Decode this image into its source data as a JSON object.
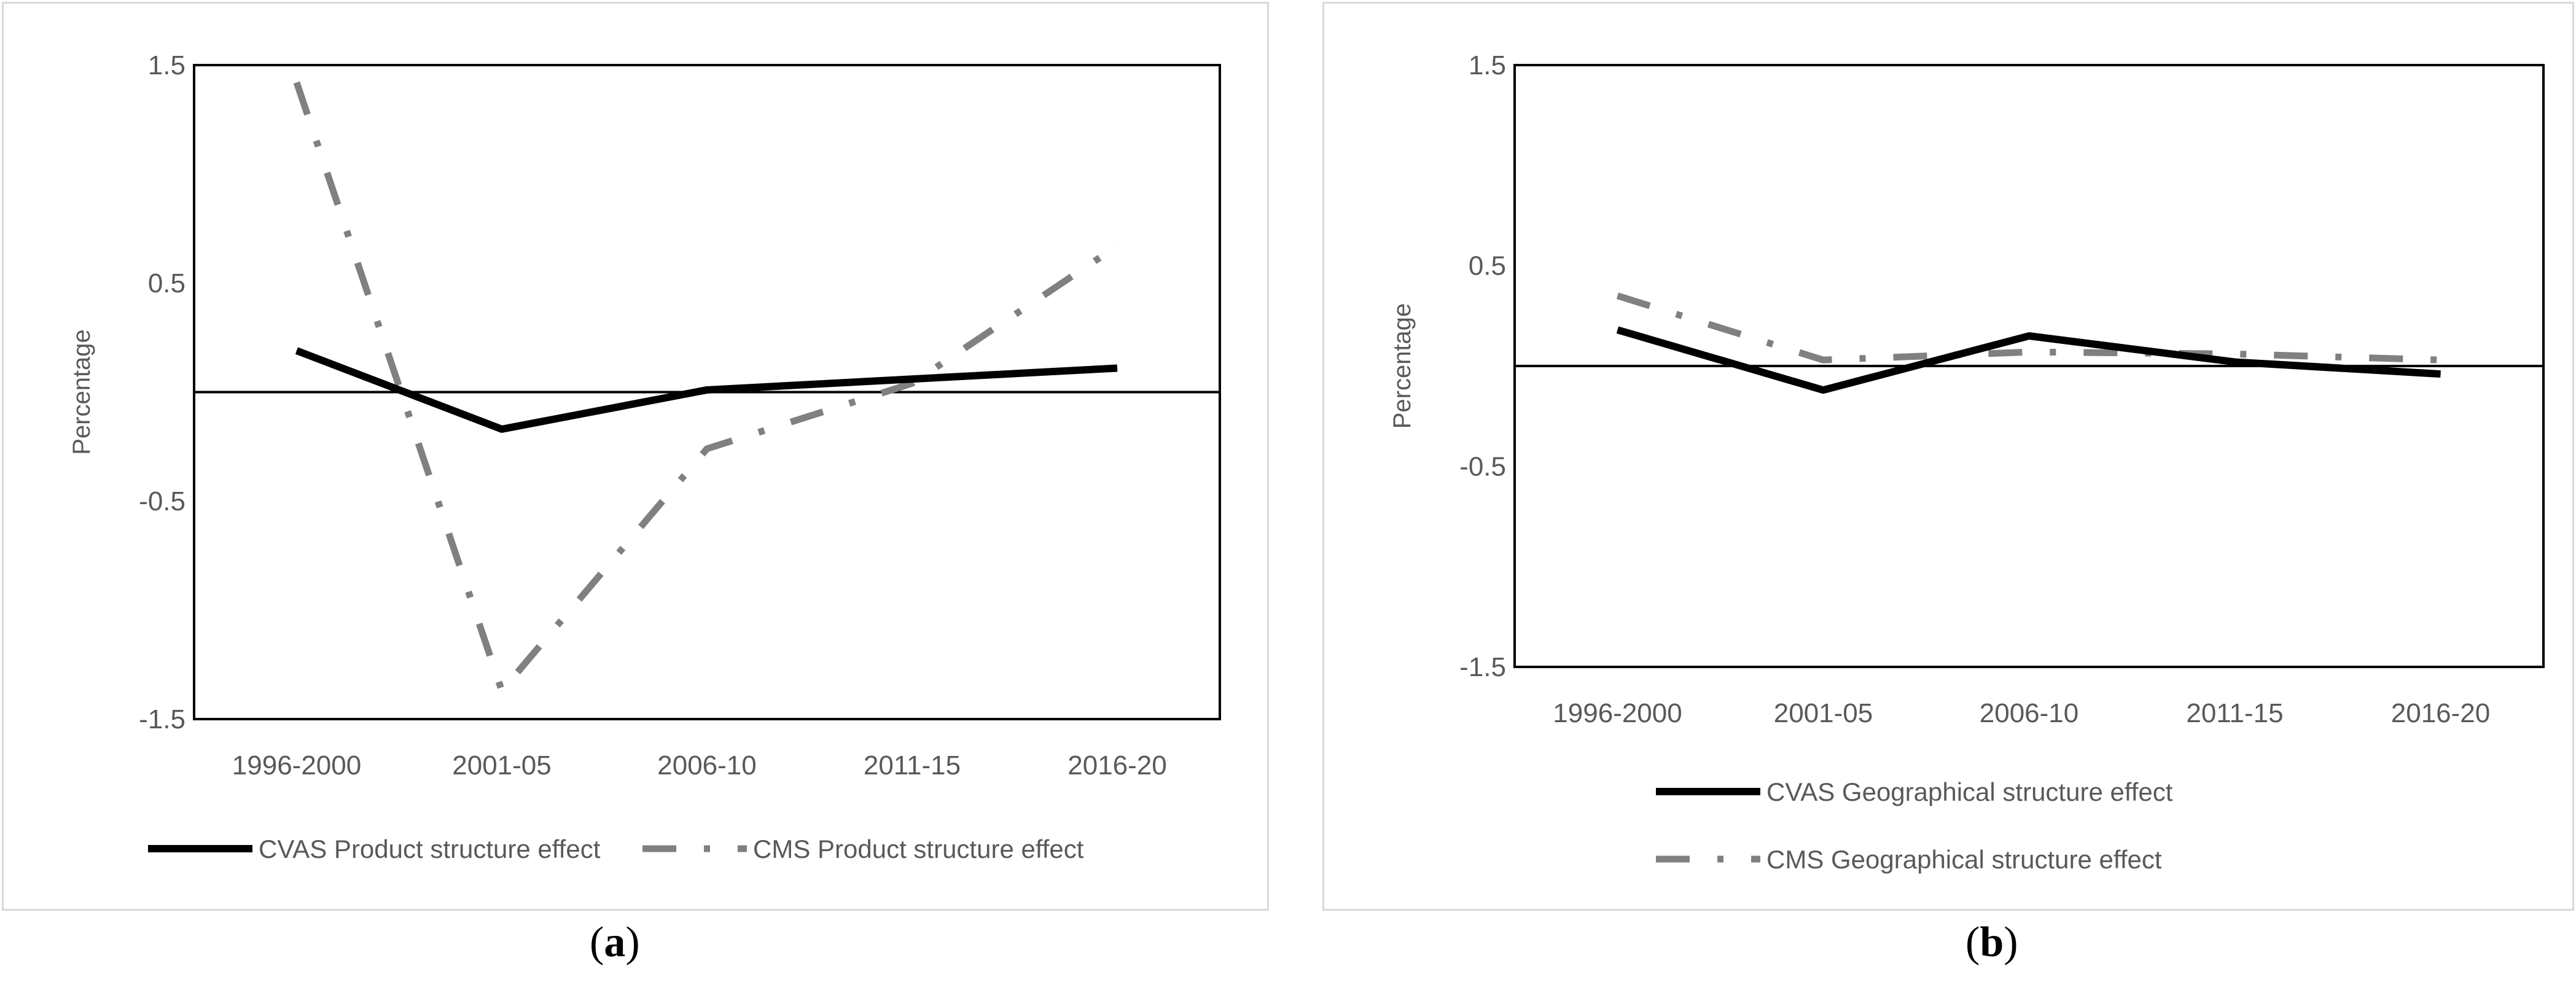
{
  "captions": {
    "a_open": "(",
    "a_letter": "a",
    "a_close": ")",
    "b_open": "(",
    "b_letter": "b",
    "b_close": ")"
  },
  "chart_data": [
    {
      "type": "line",
      "panel": "a",
      "categories": [
        "1996-2000",
        "2001-05",
        "2006-10",
        "2011-15",
        "2016-20"
      ],
      "ylabel": "Percentage",
      "ylim": [
        -1.5,
        1.5
      ],
      "yticks": [
        "1.5",
        "0.5",
        "-0.5",
        "-1.5"
      ],
      "reference_line": 0,
      "series": [
        {
          "name": "CVAS Product structure effect",
          "style": "solid",
          "color": "#000000",
          "values": [
            0.19,
            -0.17,
            0.01,
            0.06,
            0.11
          ]
        },
        {
          "name": "CMS Product structure effect",
          "style": "dashdot",
          "color": "#808080",
          "values": [
            1.42,
            -1.37,
            -0.26,
            0.04,
            0.67
          ]
        }
      ],
      "legend": "bottom"
    },
    {
      "type": "line",
      "panel": "b",
      "categories": [
        "1996-2000",
        "2001-05",
        "2006-10",
        "2011-15",
        "2016-20"
      ],
      "ylabel": "Percentage",
      "ylim": [
        -1.5,
        1.5
      ],
      "yticks": [
        "1.5",
        "0.5",
        "-0.5",
        "-1.5"
      ],
      "reference_line": 0,
      "series": [
        {
          "name": "CVAS Geographical structure effect",
          "style": "solid",
          "color": "#000000",
          "values": [
            0.18,
            -0.12,
            0.15,
            0.02,
            -0.04
          ]
        },
        {
          "name": "CMS Geographical structure effect",
          "style": "dashdot",
          "color": "#808080",
          "values": [
            0.35,
            0.03,
            0.07,
            0.06,
            0.03
          ]
        }
      ],
      "legend": "bottom-stacked"
    }
  ]
}
